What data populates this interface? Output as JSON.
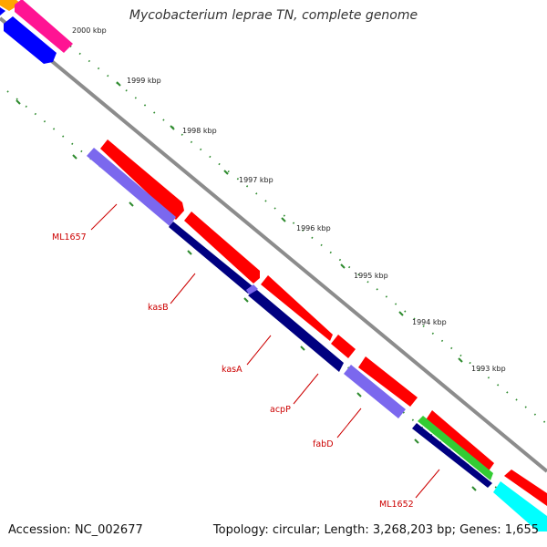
{
  "title": "Mycobacterium leprae TN, complete genome",
  "accession_text": "Accession: NC_002677",
  "topology_text": "Topology: circular; Length: 3,268,203 bp; Genes: 1,655",
  "kbp_labels": [
    "2000 kbp",
    "1999 kbp",
    "1998 kbp",
    "1997 kbp",
    "1996 kbp",
    "1995 kbp",
    "1994 kbp",
    "1993 kbp"
  ],
  "gene_labels": [
    "ML1657",
    "kasB",
    "kasA",
    "acpP",
    "fabD",
    "ML1652"
  ],
  "colors": {
    "backbone": "#8c8c8c",
    "tick_green": "#2e8b2e",
    "forward_gene": "#ff0000",
    "reverse_gene": "#7b68ee",
    "reverse_gene_dark": "#000080",
    "label_red": "#cc0000",
    "cyan_gene": "#00ffff",
    "green_gene": "#33cc33",
    "magenta_gene": "#ff1493",
    "blue_gene": "#0000ff",
    "orange_gene": "#ffa500"
  }
}
